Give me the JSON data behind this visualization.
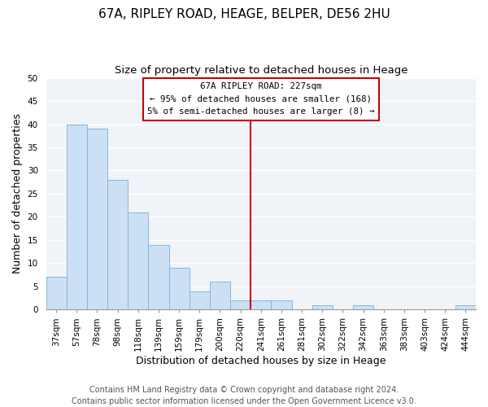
{
  "title": "67A, RIPLEY ROAD, HEAGE, BELPER, DE56 2HU",
  "subtitle": "Size of property relative to detached houses in Heage",
  "xlabel": "Distribution of detached houses by size in Heage",
  "ylabel": "Number of detached properties",
  "bar_labels": [
    "37sqm",
    "57sqm",
    "78sqm",
    "98sqm",
    "118sqm",
    "139sqm",
    "159sqm",
    "179sqm",
    "200sqm",
    "220sqm",
    "241sqm",
    "261sqm",
    "281sqm",
    "302sqm",
    "322sqm",
    "342sqm",
    "363sqm",
    "383sqm",
    "403sqm",
    "424sqm",
    "444sqm"
  ],
  "bar_heights": [
    7,
    40,
    39,
    28,
    21,
    14,
    9,
    4,
    6,
    2,
    2,
    2,
    0,
    1,
    0,
    1,
    0,
    0,
    0,
    0,
    1
  ],
  "bar_color": "#cce0f5",
  "bar_edge_color": "#8ab4d8",
  "ylim": [
    0,
    50
  ],
  "yticks": [
    0,
    5,
    10,
    15,
    20,
    25,
    30,
    35,
    40,
    45,
    50
  ],
  "property_line_x": 9.5,
  "property_line_label": "67A RIPLEY ROAD: 227sqm",
  "annotation_line1": "← 95% of detached houses are smaller (168)",
  "annotation_line2": "5% of semi-detached houses are larger (8) →",
  "footer1": "Contains HM Land Registry data © Crown copyright and database right 2024.",
  "footer2": "Contains public sector information licensed under the Open Government Licence v3.0.",
  "background_color": "#ffffff",
  "plot_bg_color": "#f0f4f8",
  "grid_color": "#ffffff",
  "title_fontsize": 11,
  "subtitle_fontsize": 9.5,
  "axis_label_fontsize": 9,
  "tick_fontsize": 7.5,
  "footer_fontsize": 7
}
